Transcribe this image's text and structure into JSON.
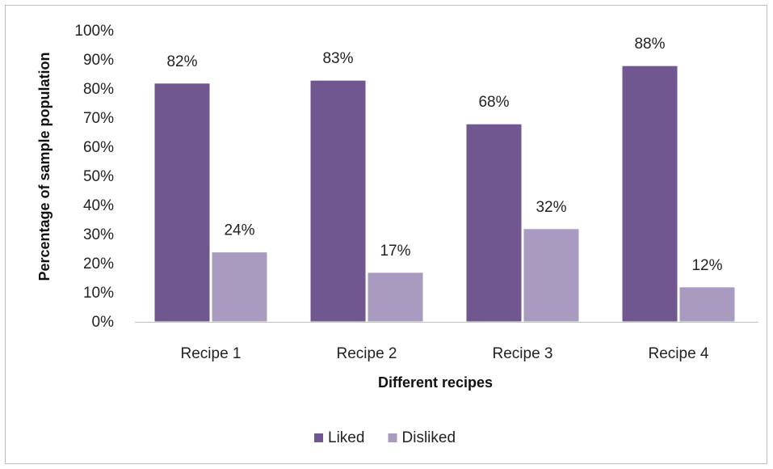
{
  "chart_data": {
    "type": "bar",
    "title": "",
    "xlabel": "Different recipes",
    "ylabel": "Percentage of sample population",
    "categories": [
      "Recipe 1",
      "Recipe 2",
      "Recipe 3",
      "Recipe 4"
    ],
    "series": [
      {
        "name": "Liked",
        "values": [
          82,
          83,
          68,
          88
        ],
        "labels": [
          "82%",
          "83%",
          "68%",
          "88%"
        ],
        "color": "#715790"
      },
      {
        "name": "Disliked",
        "values": [
          24,
          17,
          32,
          12
        ],
        "labels": [
          "24%",
          "17%",
          "32%",
          "12%"
        ],
        "color": "#a99bbf"
      }
    ],
    "ylim": [
      0,
      100
    ],
    "yticks": [
      0,
      10,
      20,
      30,
      40,
      50,
      60,
      70,
      80,
      90,
      100
    ],
    "ytick_labels": [
      "0%",
      "10%",
      "20%",
      "30%",
      "40%",
      "50%",
      "60%",
      "70%",
      "80%",
      "90%",
      "100%"
    ],
    "grid": false,
    "legend_position": "bottom"
  }
}
